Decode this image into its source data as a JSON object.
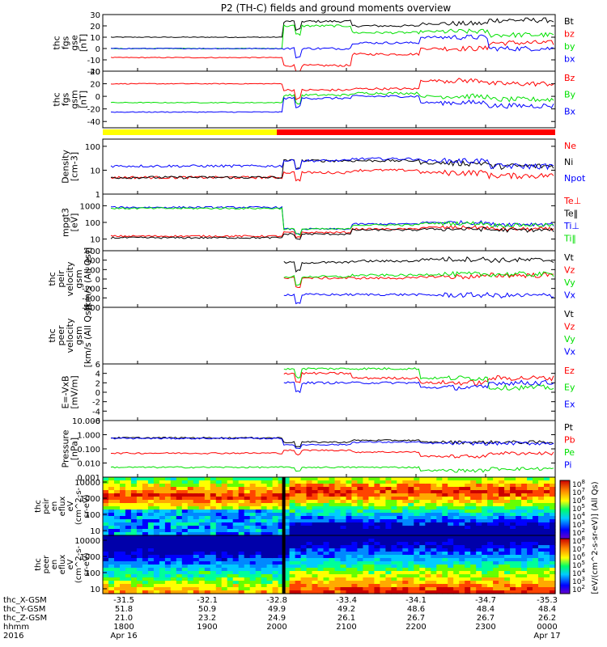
{
  "title": "P2 (TH-C) fields and ground moments overview",
  "colors": {
    "black": "#000000",
    "red": "#ff0000",
    "green": "#00e000",
    "blue": "#0000ff",
    "yellow": "#ffff00"
  },
  "chart_data": {
    "type": "line",
    "time_range": [
      "2016-04-16 17:30",
      "2016-04-17 00:00"
    ],
    "time_ticks": [
      "1800",
      "1900",
      "2000",
      "2100",
      "2200",
      "2300",
      "0000"
    ],
    "x_date_labels": [
      "Apr 16",
      "Apr 17"
    ],
    "bottom_labels": [
      {
        "name": "thc_X-GSM",
        "values": [
          "-31.5",
          "-32.1",
          "-32.8",
          "-33.4",
          "-34.1",
          "-34.7",
          "-35.3"
        ]
      },
      {
        "name": "thc_Y-GSM",
        "values": [
          "51.8",
          "50.9",
          "49.9",
          "49.2",
          "48.6",
          "48.4",
          "48.4"
        ]
      },
      {
        "name": "thc_Z-GSM",
        "values": [
          "21.0",
          "23.2",
          "24.9",
          "26.1",
          "26.7",
          "26.7",
          "26.2"
        ]
      },
      {
        "name": "hhmm",
        "values": [
          "1800",
          "1900",
          "2000",
          "2100",
          "2200",
          "2300",
          "0000"
        ]
      },
      {
        "name": "2016",
        "values": [
          "Apr 16",
          "",
          "",
          "",
          "",
          "",
          "Apr 17"
        ]
      }
    ],
    "panels": [
      {
        "id": "bfield-gse",
        "ylabel": [
          "thc",
          "fgs",
          "gse",
          "[nT]"
        ],
        "scale": "linear",
        "ylim": [
          -20,
          30
        ],
        "yticks": [
          "30",
          "20",
          "10",
          "0",
          "-10",
          "-20"
        ],
        "series": [
          {
            "name": "Bt",
            "color": "black",
            "before": 10,
            "after": [
              24,
              20,
              22,
              25
            ]
          },
          {
            "name": "bz",
            "color": "red",
            "before": -8,
            "after": [
              -15,
              -5,
              0,
              5
            ]
          },
          {
            "name": "by",
            "color": "green",
            "before": 0,
            "after": [
              20,
              14,
              15,
              12
            ]
          },
          {
            "name": "bx",
            "color": "blue",
            "before": 0,
            "after": [
              0,
              5,
              10,
              0
            ]
          }
        ]
      },
      {
        "id": "bfield-gsm",
        "ylabel": [
          "thc",
          "fgs",
          "gsm",
          "[nT]"
        ],
        "scale": "linear",
        "ylim": [
          -50,
          40
        ],
        "yticks": [
          "40",
          "20",
          "0",
          "-20",
          "-40"
        ],
        "series": [
          {
            "name": "Bz",
            "color": "red",
            "before": 20,
            "after": [
              10,
              12,
              25,
              20
            ]
          },
          {
            "name": "By",
            "color": "green",
            "before": -10,
            "after": [
              2,
              5,
              0,
              -5
            ]
          },
          {
            "name": "Bx",
            "color": "blue",
            "before": -25,
            "after": [
              -3,
              0,
              -10,
              -15
            ]
          }
        ]
      },
      {
        "id": "density",
        "ylabel": [
          "Density",
          "[cm-3]"
        ],
        "scale": "log",
        "ylim": [
          1,
          200
        ],
        "yticks": [
          "100",
          "10",
          "1"
        ],
        "series": [
          {
            "name": "Ne",
            "color": "red",
            "before": 5,
            "after": [
              8,
              10,
              8,
              6
            ]
          },
          {
            "name": "Ni",
            "color": "black",
            "before": 5,
            "after": [
              25,
              25,
              20,
              15
            ]
          },
          {
            "name": "Npot",
            "color": "blue",
            "before": 15,
            "after": [
              25,
              30,
              25,
              15
            ]
          }
        ]
      },
      {
        "id": "temperature",
        "ylabel": [
          "mpgt3",
          "[eV]"
        ],
        "scale": "log",
        "ylim": [
          2,
          5000
        ],
        "yticks": [
          "1000",
          "100",
          "10"
        ],
        "series": [
          {
            "name": "Te⊥",
            "color": "red",
            "before": 15,
            "after": [
              25,
              40,
              50,
              40
            ]
          },
          {
            "name": "Te‖",
            "color": "black",
            "before": 12,
            "after": [
              20,
              35,
              40,
              35
            ]
          },
          {
            "name": "Ti⊥",
            "color": "blue",
            "before": 800,
            "after": [
              40,
              80,
              100,
              80
            ]
          },
          {
            "name": "Ti‖",
            "color": "green",
            "before": 700,
            "after": [
              40,
              70,
              90,
              70
            ]
          }
        ]
      },
      {
        "id": "ion-velocity",
        "ylabel": [
          "thc",
          "peir",
          "velocity",
          "gsm",
          "[km/s (All Qs)]"
        ],
        "scale": "linear",
        "ylim": [
          -600,
          600
        ],
        "yticks": [
          "600",
          "400",
          "200",
          "0",
          "-200",
          "-400",
          "-600"
        ],
        "series": [
          {
            "name": "Vt",
            "color": "black",
            "before": null,
            "after": [
              350,
              380,
              420,
              400
            ]
          },
          {
            "name": "Vz",
            "color": "red",
            "before": null,
            "after": [
              20,
              20,
              50,
              80
            ]
          },
          {
            "name": "Vy",
            "color": "green",
            "before": null,
            "after": [
              50,
              80,
              100,
              100
            ]
          },
          {
            "name": "Vx",
            "color": "blue",
            "before": null,
            "after": [
              -330,
              -330,
              -340,
              -350
            ]
          }
        ]
      },
      {
        "id": "electron-velocity",
        "ylabel": [
          "thc",
          "peer",
          "velocity",
          "gsm",
          "[km/s (All Qs)]"
        ],
        "scale": "linear",
        "ylim": [
          -600,
          600
        ],
        "yticks": [],
        "series": [
          {
            "name": "Vt",
            "color": "black",
            "before": null,
            "after": null
          },
          {
            "name": "Vz",
            "color": "red",
            "before": null,
            "after": null
          },
          {
            "name": "Vy",
            "color": "green",
            "before": null,
            "after": null
          },
          {
            "name": "Vx",
            "color": "blue",
            "before": null,
            "after": null
          }
        ]
      },
      {
        "id": "efield",
        "ylabel": [
          "E=-VxB",
          "[mV/m]"
        ],
        "scale": "linear",
        "ylim": [
          -6,
          6
        ],
        "yticks": [
          "6",
          "4",
          "2",
          "0",
          "-2",
          "-4",
          "-6"
        ],
        "series": [
          {
            "name": "Ez",
            "color": "red",
            "before": null,
            "after": [
              4,
              3,
              2,
              3
            ]
          },
          {
            "name": "Ey",
            "color": "green",
            "before": null,
            "after": [
              5,
              5,
              3,
              1
            ]
          },
          {
            "name": "Ex",
            "color": "blue",
            "before": null,
            "after": [
              2,
              2,
              1,
              2
            ]
          }
        ]
      },
      {
        "id": "pressure",
        "ylabel": [
          "Pressure",
          "[nPa]"
        ],
        "scale": "log",
        "ylim": [
          0.001,
          10
        ],
        "yticks": [
          "10.000",
          "1.000",
          "0.100",
          "0.010",
          "0.001"
        ],
        "series": [
          {
            "name": "Pt",
            "color": "black",
            "before": 0.6,
            "after": [
              0.3,
              0.4,
              0.3,
              0.3
            ]
          },
          {
            "name": "Pb",
            "color": "red",
            "before": 0.05,
            "after": [
              0.08,
              0.06,
              0.03,
              0.05
            ]
          },
          {
            "name": "Pe",
            "color": "green",
            "before": 0.005,
            "after": [
              0.005,
              0.005,
              0.003,
              0.004
            ]
          },
          {
            "name": "Pi",
            "color": "blue",
            "before": 0.55,
            "after": [
              0.2,
              0.3,
              0.25,
              0.25
            ]
          }
        ]
      }
    ],
    "spectrograms": [
      {
        "id": "ion-eflux",
        "ylabel": [
          "thc",
          "peir",
          "en",
          "eflux",
          "eV",
          "(cm^2-s-",
          "sr-eV)"
        ],
        "scale": "log",
        "ylim": [
          5,
          20000
        ],
        "yticks": [
          "10000",
          "1000",
          "100",
          "10"
        ]
      },
      {
        "id": "electron-eflux",
        "ylabel": [
          "thc",
          "peer",
          "en",
          "eflux",
          "eV",
          "(cm^2-s-",
          "sr-eV)"
        ],
        "scale": "log",
        "ylim": [
          5,
          20000
        ],
        "yticks": [
          "10000",
          "1000",
          "100",
          "10"
        ]
      }
    ],
    "colorbar": {
      "label": "[eV/(cm^2-s-sr-eV)] (All Qs)",
      "ticks": [
        "10^8",
        "10^7",
        "10^6",
        "10^5",
        "10^4",
        "10^3",
        "10^2"
      ]
    },
    "mode_bar": {
      "segments": [
        {
          "color": "yellow",
          "to": "20:00"
        },
        {
          "color": "red",
          "to": "00:00"
        }
      ]
    }
  }
}
